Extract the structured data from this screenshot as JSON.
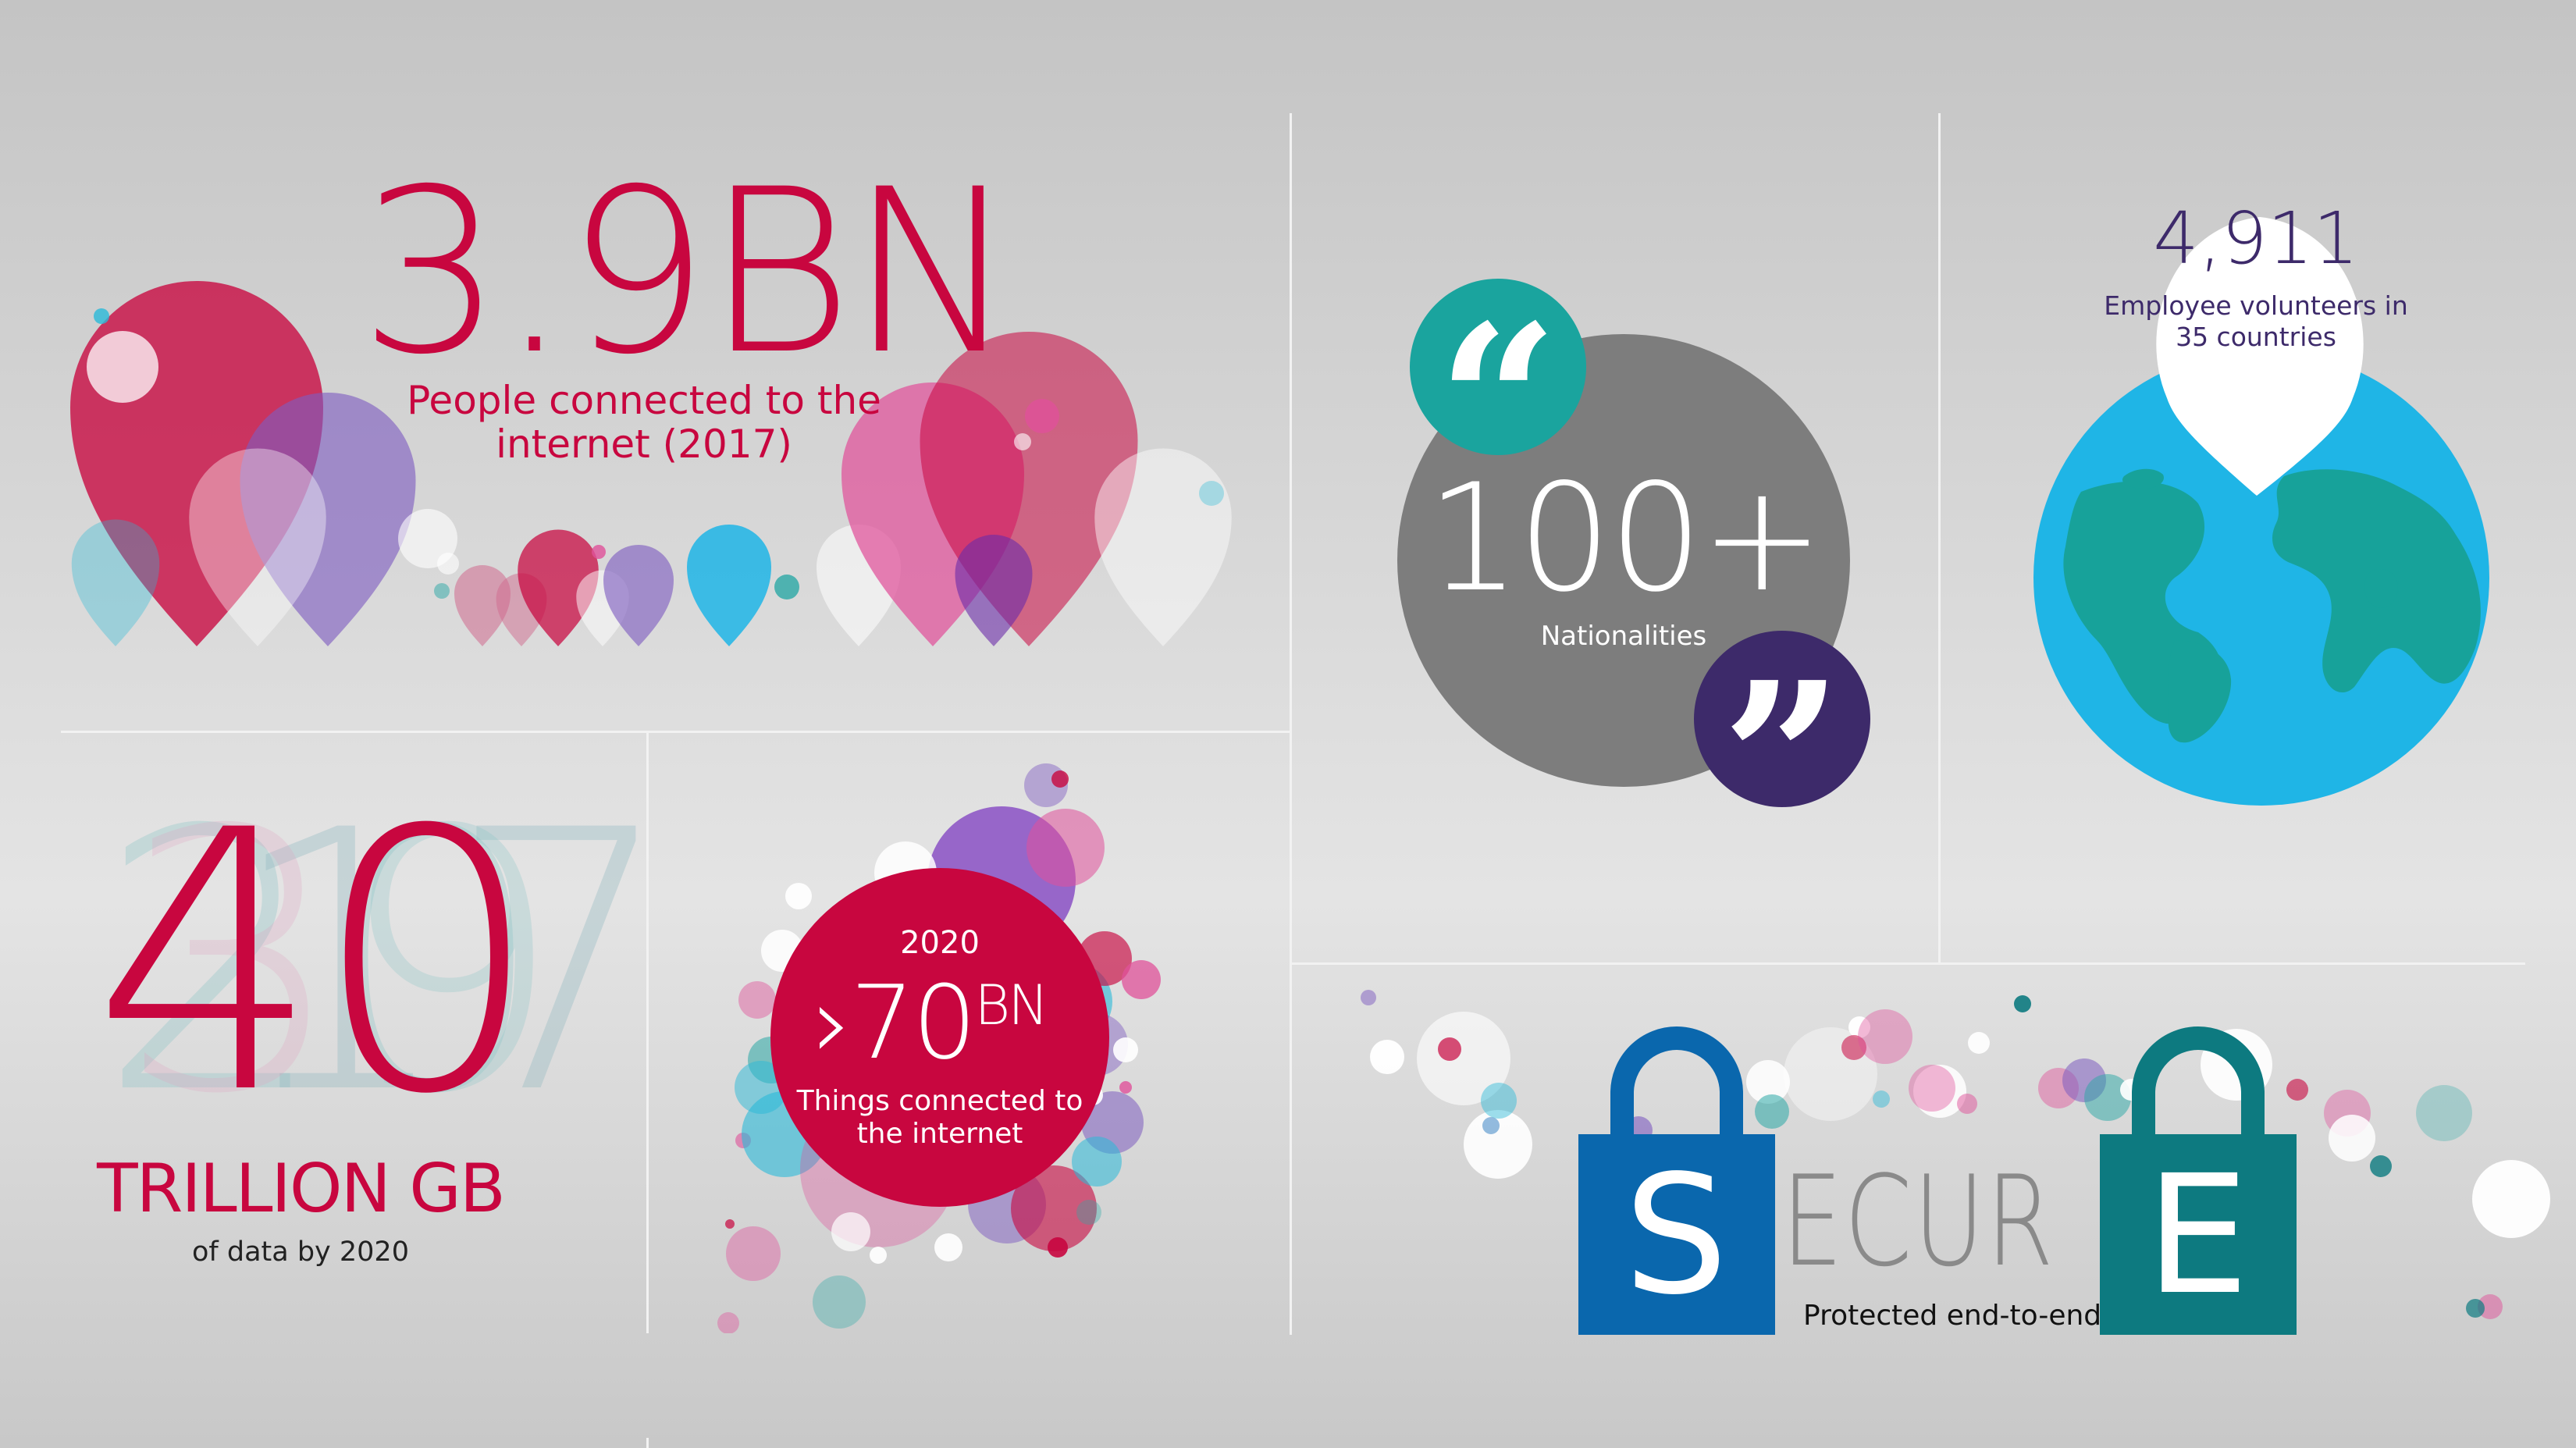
{
  "panels": {
    "connected_people": {
      "value": "3.9BN",
      "caption": "People connected to the internet (2017)"
    },
    "data": {
      "value": "40",
      "ghost_values": [
        "20",
        "17",
        "3",
        "9"
      ],
      "unit": "TRILLION GB",
      "caption": "of data by 2020"
    },
    "things": {
      "year": "2020",
      "prefix": "›",
      "value": "70",
      "unit": "BN",
      "caption": "Things connected to the internet"
    },
    "nationalities": {
      "open_quote": "“",
      "close_quote": "”",
      "value": "100+",
      "caption": "Nationalities"
    },
    "volunteers": {
      "value": "4,911",
      "caption": "Employee volunteers in 35 countries"
    },
    "secure": {
      "letter_left": "S",
      "middle": "ECUR",
      "letter_right": "E",
      "caption": "Protected end-to-end"
    }
  },
  "colors": {
    "red": "#c8063f",
    "purple": "#7e5cc0",
    "pink": "#e0519a",
    "cyan": "#29b9d8",
    "teal": "#2aa8a5",
    "dark_purple": "#3d2a6a",
    "grey_circle": "#7d7d7d",
    "globe_water": "#1fb5e6",
    "globe_land": "#17a29a",
    "lock_blue": "#0a67ad",
    "lock_teal": "#0d7a80"
  },
  "icons": [
    "map-pin-icon",
    "open-quote-icon",
    "close-quote-icon",
    "globe-icon",
    "padlock-icon"
  ]
}
